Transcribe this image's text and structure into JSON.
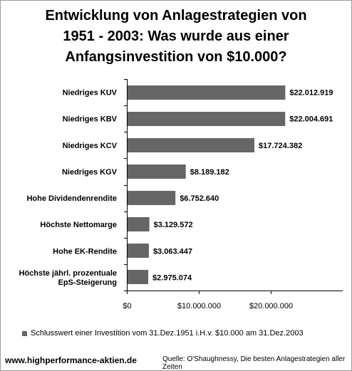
{
  "title": "Entwicklung von Anlagestrategien von\n1951 - 2003: Was wurde aus einer\nAnfangsinvestition von $10.000?",
  "legend_label": "Schlusswert einer Investition vom 31.Dez.1951 i.H.v. $10.000 am 31.Dez.2003",
  "footer_url": "www.highperformance-aktien.de",
  "footer_source": "Quelle: O'Shaughnessy, Die besten Anlagestrategien aller Zeiten",
  "colors": {
    "bar": "#666666",
    "axis": "#000000",
    "background": "#ffffff"
  },
  "chart_data": {
    "type": "bar",
    "orientation": "horizontal",
    "categories": [
      "Niedriges KUV",
      "Niedriges KBV",
      "Niedriges KCV",
      "Niedriges KGV",
      "Hohe Dividendenrendite",
      "Höchste Nettomarge",
      "Hohe EK-Rendite",
      "Höchste jährl. prozentuale\nEpS-Steigerung"
    ],
    "values": [
      22012919,
      22004691,
      17724382,
      8189182,
      6752640,
      3129572,
      3063447,
      2975074
    ],
    "data_labels": [
      "$22.012.919",
      "$22.004.691",
      "$17.724.382",
      "$8.189.182",
      "$6.752.640",
      "$3.129.572",
      "$3.063.447",
      "$2.975.074"
    ],
    "series": [
      {
        "name": "Schlusswert einer Investition vom 31.Dez.1951 i.H.v. $10.000 am 31.Dez.2003"
      }
    ],
    "xlim": [
      0,
      30000000
    ],
    "xticks": [
      0,
      10000000,
      20000000
    ],
    "xtick_labels": [
      "$0",
      "$10.000.000",
      "$20.000.000"
    ],
    "grid": false,
    "legend_position": "bottom"
  }
}
